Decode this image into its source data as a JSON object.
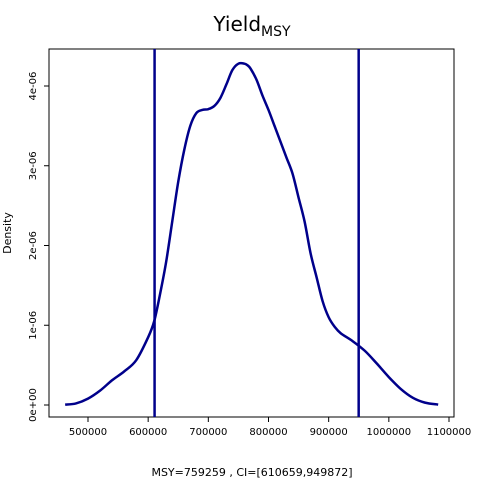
{
  "chart_data": {
    "type": "line",
    "title": "Yield",
    "title_subscript": "MSY",
    "xlabel": "MSY=759259 , CI=[610659,949872]",
    "ylabel": "Density",
    "xlim": [
      450000,
      1100000
    ],
    "ylim": [
      0,
      4.4e-06
    ],
    "x_ticks": [
      {
        "value": 500000,
        "label": "500000"
      },
      {
        "value": 600000,
        "label": "600000"
      },
      {
        "value": 700000,
        "label": "700000"
      },
      {
        "value": 800000,
        "label": "800000"
      },
      {
        "value": 900000,
        "label": "900000"
      },
      {
        "value": 1000000,
        "label": "1000000"
      },
      {
        "value": 1100000,
        "label": "1100000"
      }
    ],
    "y_ticks": [
      {
        "value": 0,
        "label": "0e+00"
      },
      {
        "value": 1e-06,
        "label": "1e-06"
      },
      {
        "value": 2e-06,
        "label": "2e-06"
      },
      {
        "value": 3e-06,
        "label": "3e-06"
      },
      {
        "value": 4e-06,
        "label": "4e-06"
      }
    ],
    "line_color": "#00008b",
    "vlines": [
      610659,
      949872
    ],
    "series": [
      {
        "x": [
          462000,
          480000,
          500000,
          520000,
          540000,
          560000,
          580000,
          600000,
          610000,
          620000,
          630000,
          640000,
          650000,
          660000,
          670000,
          680000,
          690000,
          700000,
          710000,
          720000,
          730000,
          740000,
          750000,
          760000,
          765000,
          770000,
          780000,
          790000,
          800000,
          810000,
          820000,
          830000,
          840000,
          850000,
          860000,
          870000,
          880000,
          890000,
          900000,
          910000,
          920000,
          940000,
          960000,
          980000,
          1000000,
          1020000,
          1040000,
          1060000,
          1082000
        ],
        "y": [
          5e-09,
          2e-08,
          8e-08,
          1.8e-07,
          3.1e-07,
          4.2e-07,
          5.6e-07,
          8.5e-07,
          1.05e-06,
          1.4e-06,
          1.8e-06,
          2.3e-06,
          2.8e-06,
          3.2e-06,
          3.5e-06,
          3.66e-06,
          3.7e-06,
          3.71e-06,
          3.75e-06,
          3.85e-06,
          4.02e-06,
          4.2e-06,
          4.28e-06,
          4.28e-06,
          4.26e-06,
          4.22e-06,
          4.08e-06,
          3.88e-06,
          3.7e-06,
          3.5e-06,
          3.3e-06,
          3.1e-06,
          2.9e-06,
          2.6e-06,
          2.3e-06,
          1.9e-06,
          1.6e-06,
          1.3e-06,
          1.1e-06,
          9.8e-07,
          9e-07,
          8e-07,
          6.8e-07,
          5.2e-07,
          3.5e-07,
          2e-07,
          9e-08,
          3e-08,
          5e-09
        ]
      }
    ]
  }
}
